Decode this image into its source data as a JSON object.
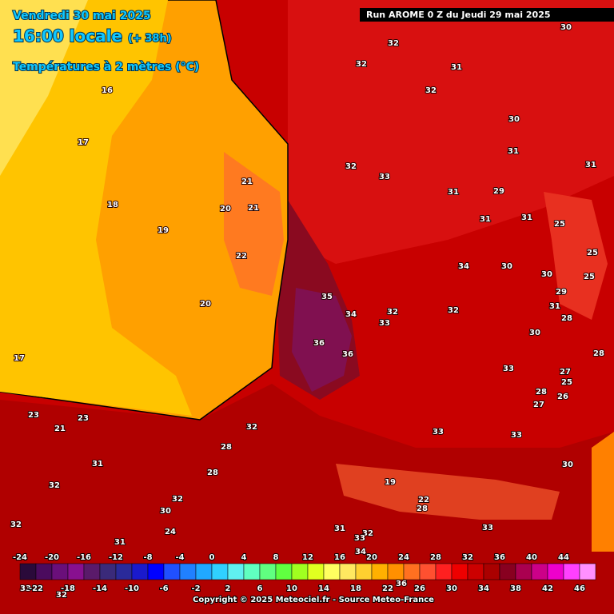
{
  "header": {
    "date": "Vendredi 30 mai 2025",
    "time": "16:00 locale",
    "offset": "(+ 38h)",
    "field": "Températures à 2 mètres (°C)",
    "run": "Run AROME 0 Z du Jeudi 29 mai 2025"
  },
  "map_labels": [
    32,
    31,
    32,
    32,
    30,
    30,
    31,
    31,
    32,
    33,
    31,
    29,
    31,
    31,
    25,
    34,
    30,
    30,
    25,
    25,
    29,
    31,
    28,
    30,
    28,
    33,
    27,
    25,
    28,
    26,
    27,
    32,
    32,
    33,
    35,
    34,
    36,
    36,
    33,
    33,
    30,
    32,
    28,
    28,
    31,
    32,
    32,
    30,
    32,
    31,
    32,
    19,
    16,
    17,
    18,
    19,
    20,
    21,
    21,
    22,
    20,
    17,
    23,
    23,
    21,
    31,
    32,
    33,
    34,
    36,
    33,
    22,
    24,
    28,
    33
  ],
  "scale": {
    "ticks": [
      -24,
      -22,
      -20,
      -18,
      -16,
      -14,
      -12,
      -10,
      -8,
      -6,
      -4,
      -2,
      0,
      2,
      4,
      6,
      8,
      10,
      12,
      14,
      16,
      18,
      20,
      22,
      24,
      26,
      28,
      30,
      32,
      34,
      36,
      38,
      40,
      42,
      44,
      46
    ],
    "colors": [
      "#2a0a3a",
      "#4b0b5e",
      "#6a0f7a",
      "#88108f",
      "#5a1a6a",
      "#3a2a7a",
      "#2a2a9a",
      "#1a1acc",
      "#0000ff",
      "#2050ff",
      "#2080ff",
      "#20a8ff",
      "#30d0ff",
      "#60f0f0",
      "#60ffc0",
      "#60ff80",
      "#60ff40",
      "#a0ff20",
      "#e0ff20",
      "#ffff60",
      "#ffe860",
      "#ffd030",
      "#ffb000",
      "#ff9000",
      "#ff7020",
      "#ff5030",
      "#ff2020",
      "#ee0000",
      "#cc0000",
      "#aa0000",
      "#880020",
      "#aa0050",
      "#cc0088",
      "#ee00cc",
      "#ff40ff",
      "#ff90ff"
    ]
  },
  "footer": "Copyright © 2025 Meteociel.fr - Source Meteo-France"
}
